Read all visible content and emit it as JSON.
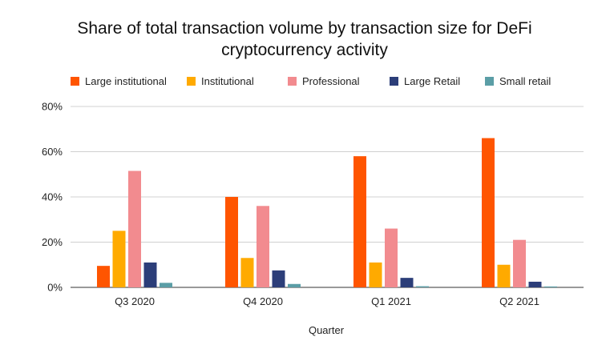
{
  "chart_data": {
    "type": "bar",
    "title_lines": [
      "Share of total transaction volume by transaction size for DeFi",
      "cryptocurrency activity"
    ],
    "xlabel": "Quarter",
    "ylabel": "",
    "categories": [
      "Q3 2020",
      "Q4 2020",
      "Q1 2021",
      "Q2 2021"
    ],
    "y_ticks": [
      "0%",
      "20%",
      "40%",
      "60%",
      "80%"
    ],
    "ylim": [
      0,
      80
    ],
    "grid": true,
    "legend_position": "top",
    "series": [
      {
        "name": "Large institutional",
        "color": "#ff5500",
        "values": [
          9.5,
          40,
          58,
          66
        ]
      },
      {
        "name": "Institutional",
        "color": "#ffaa00",
        "values": [
          25,
          13,
          11,
          10
        ]
      },
      {
        "name": "Professional",
        "color": "#f28b8f",
        "values": [
          51.5,
          36,
          26,
          21
        ]
      },
      {
        "name": "Large Retail",
        "color": "#2c3e79",
        "values": [
          11,
          7.5,
          4.2,
          2.5
        ]
      },
      {
        "name": "Small retail",
        "color": "#5b9ea6",
        "values": [
          2,
          1.5,
          0.5,
          0.4
        ]
      }
    ]
  }
}
